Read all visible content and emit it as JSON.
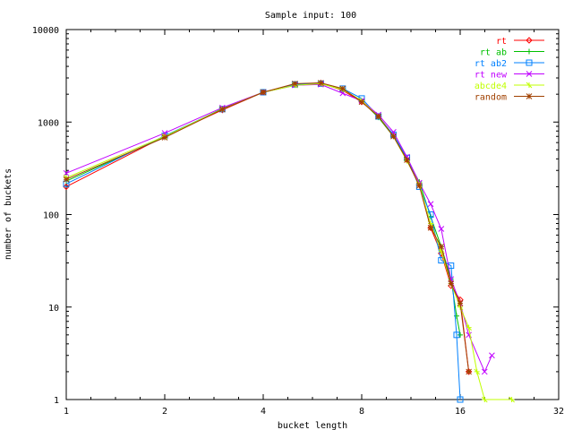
{
  "chart_data": {
    "type": "line",
    "title": "Sample input: 100",
    "xlabel": "bucket length",
    "ylabel": "number of buckets",
    "xscale": "log2",
    "yscale": "log10",
    "xlim": [
      1,
      32
    ],
    "ylim": [
      1,
      10000
    ],
    "grid": false,
    "legend_position": "top-right",
    "x_ticks": [
      {
        "value": 1,
        "label": "1"
      },
      {
        "value": 2,
        "label": "2"
      },
      {
        "value": 4,
        "label": "4"
      },
      {
        "value": 8,
        "label": "8"
      },
      {
        "value": 16,
        "label": "16"
      },
      {
        "value": 32,
        "label": "32"
      }
    ],
    "y_ticks": [
      {
        "value": 1,
        "label": "1"
      },
      {
        "value": 10,
        "label": "10"
      },
      {
        "value": 100,
        "label": "100"
      },
      {
        "value": 1000,
        "label": "1000"
      },
      {
        "value": 10000,
        "label": "10000"
      }
    ],
    "series": [
      {
        "name": "rt",
        "color": "#ff0000",
        "marker": "diamond",
        "points": [
          [
            1,
            200
          ],
          [
            2,
            700
          ],
          [
            3,
            1350
          ],
          [
            4,
            2100
          ],
          [
            5,
            2550
          ],
          [
            6,
            2650
          ],
          [
            7,
            2200
          ],
          [
            8,
            1650
          ],
          [
            9,
            1150
          ],
          [
            10,
            720
          ],
          [
            11,
            390
          ],
          [
            12,
            210
          ],
          [
            13,
            72
          ],
          [
            14,
            38
          ],
          [
            15,
            17
          ],
          [
            16,
            12
          ],
          [
            17,
            2
          ]
        ]
      },
      {
        "name": "rt ab",
        "color": "#00c000",
        "marker": "plus",
        "points": [
          [
            1,
            230
          ],
          [
            2,
            690
          ],
          [
            3,
            1400
          ],
          [
            4,
            2100
          ],
          [
            5,
            2500
          ],
          [
            6,
            2600
          ],
          [
            7,
            2250
          ],
          [
            8,
            1700
          ],
          [
            9,
            1120
          ],
          [
            10,
            700
          ],
          [
            11,
            400
          ],
          [
            12,
            225
          ],
          [
            13,
            95
          ],
          [
            14,
            45
          ],
          [
            15,
            20
          ],
          [
            15.6,
            8
          ],
          [
            16,
            5
          ]
        ]
      },
      {
        "name": "rt ab2",
        "color": "#0080ff",
        "marker": "square",
        "points": [
          [
            1,
            215
          ],
          [
            2,
            710
          ],
          [
            3,
            1380
          ],
          [
            4,
            2100
          ],
          [
            5,
            2550
          ],
          [
            6,
            2600
          ],
          [
            7,
            2300
          ],
          [
            8,
            1800
          ],
          [
            9,
            1150
          ],
          [
            10,
            730
          ],
          [
            11,
            410
          ],
          [
            12,
            200
          ],
          [
            13,
            100
          ],
          [
            14,
            32
          ],
          [
            15,
            28
          ],
          [
            15.6,
            5
          ],
          [
            16,
            1
          ]
        ]
      },
      {
        "name": "rt new",
        "color": "#c000ff",
        "marker": "x",
        "points": [
          [
            1,
            280
          ],
          [
            2,
            760
          ],
          [
            3,
            1430
          ],
          [
            4,
            2100
          ],
          [
            5,
            2500
          ],
          [
            6,
            2550
          ],
          [
            7,
            2050
          ],
          [
            8,
            1700
          ],
          [
            9,
            1200
          ],
          [
            10,
            780
          ],
          [
            11,
            420
          ],
          [
            12,
            220
          ],
          [
            13,
            130
          ],
          [
            14,
            70
          ],
          [
            15,
            20
          ],
          [
            16,
            11
          ],
          [
            17,
            5
          ],
          [
            19,
            2
          ],
          [
            20,
            3
          ]
        ]
      },
      {
        "name": "abcde4",
        "color": "#c0ff00",
        "marker": "star",
        "points": [
          [
            1,
            250
          ],
          [
            2,
            700
          ],
          [
            3,
            1380
          ],
          [
            4,
            2100
          ],
          [
            5,
            2500
          ],
          [
            6,
            2600
          ],
          [
            7,
            2250
          ],
          [
            8,
            1700
          ],
          [
            9,
            1150
          ],
          [
            10,
            700
          ],
          [
            11,
            380
          ],
          [
            12,
            210
          ],
          [
            13,
            80
          ],
          [
            14,
            40
          ],
          [
            15,
            18
          ],
          [
            16,
            10
          ],
          [
            17,
            6
          ],
          [
            18,
            2
          ],
          [
            19,
            1
          ],
          [
            23,
            1
          ]
        ]
      },
      {
        "name": "random",
        "color": "#a04000",
        "marker": "asterisk",
        "points": [
          [
            1,
            240
          ],
          [
            2,
            680
          ],
          [
            3,
            1370
          ],
          [
            4,
            2100
          ],
          [
            5,
            2600
          ],
          [
            6,
            2650
          ],
          [
            7,
            2300
          ],
          [
            8,
            1650
          ],
          [
            9,
            1150
          ],
          [
            10,
            700
          ],
          [
            11,
            390
          ],
          [
            12,
            205
          ],
          [
            13,
            72
          ],
          [
            14,
            45
          ],
          [
            15,
            18
          ],
          [
            16,
            11
          ],
          [
            17,
            2
          ]
        ]
      }
    ]
  }
}
